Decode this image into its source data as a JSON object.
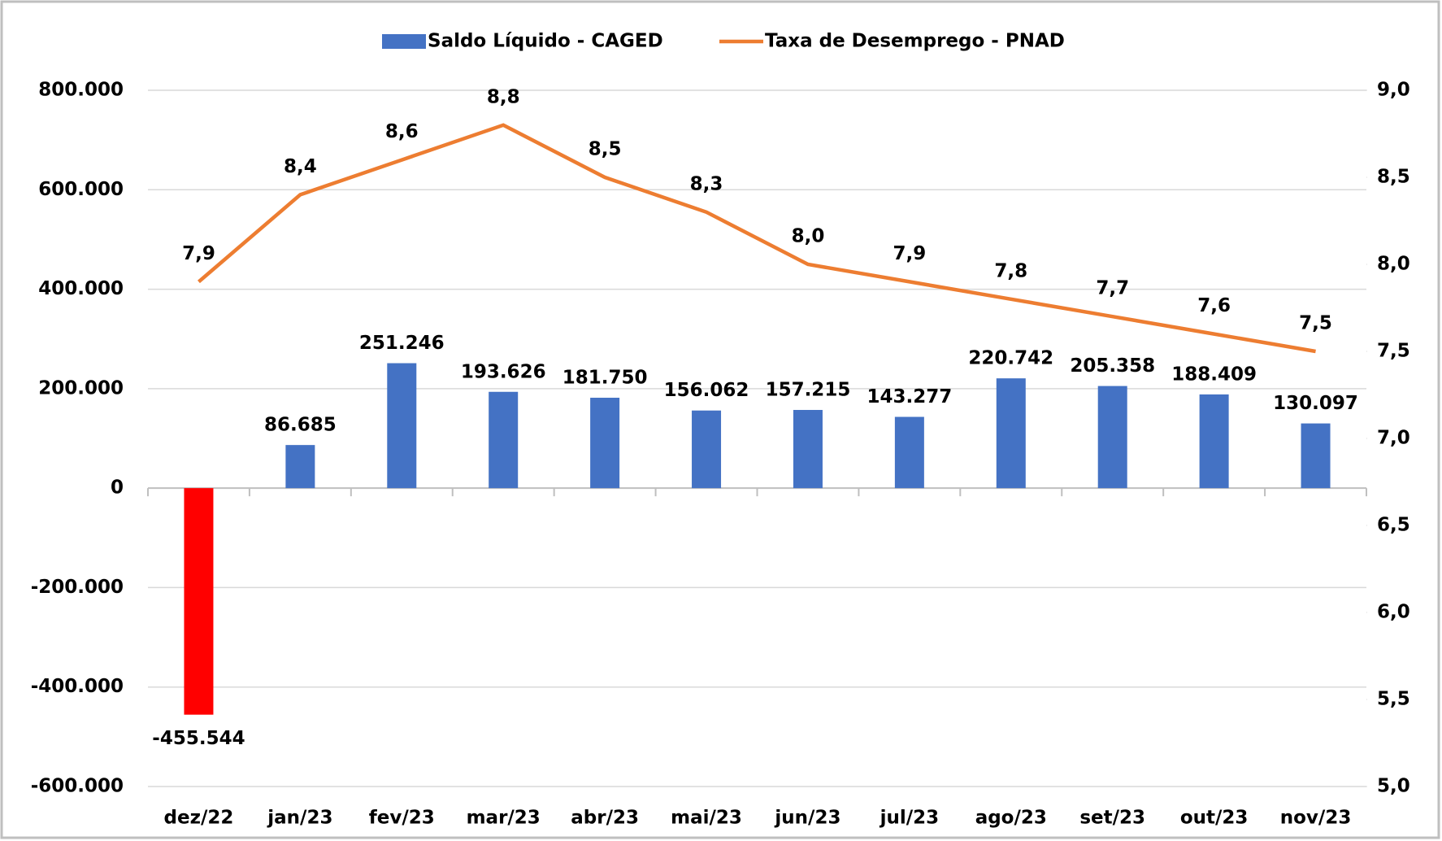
{
  "chart_data": {
    "type": "combo",
    "categories": [
      "dez/22",
      "jan/23",
      "fev/23",
      "mar/23",
      "abr/23",
      "mai/23",
      "jun/23",
      "jul/23",
      "ago/23",
      "set/23",
      "out/23",
      "nov/23"
    ],
    "series": [
      {
        "name": "Saldo Líquido - CAGED",
        "type": "bar",
        "color": "#4472c4",
        "negative_color": "#ff0000",
        "values": [
          -455544,
          86685,
          251246,
          193626,
          181750,
          156062,
          157215,
          143277,
          220742,
          205358,
          188409,
          130097
        ],
        "value_labels": [
          "-455.544",
          "86.685",
          "251.246",
          "193.626",
          "181.750",
          "156.062",
          "157.215",
          "143.277",
          "220.742",
          "205.358",
          "188.409",
          "130.097"
        ]
      },
      {
        "name": "Taxa de Desemprego - PNAD",
        "type": "line",
        "axis": "y2",
        "color": "#ed7d31",
        "values": [
          7.9,
          8.4,
          8.6,
          8.8,
          8.5,
          8.3,
          8.0,
          7.9,
          7.8,
          7.7,
          7.6,
          7.5
        ],
        "value_labels": [
          "7,9",
          "8,4",
          "8,6",
          "8,8",
          "8,5",
          "8,3",
          "8,0",
          "7,9",
          "7,8",
          "7,7",
          "7,6",
          "7,5"
        ]
      }
    ],
    "ylim": [
      -600000,
      800000
    ],
    "yticks": [
      {
        "value": -600000,
        "label": "-600.000"
      },
      {
        "value": -400000,
        "label": "-400.000"
      },
      {
        "value": -200000,
        "label": "-200.000"
      },
      0,
      {
        "value": 200000,
        "label": "200.000"
      },
      {
        "value": 400000,
        "label": "400.000"
      },
      {
        "value": 600000,
        "label": "600.000"
      },
      {
        "value": 800000,
        "label": "800.000"
      }
    ],
    "y2lim": [
      5,
      9
    ],
    "y2ticks": [
      {
        "value": 5,
        "label": "5,0"
      },
      {
        "value": 5.5,
        "label": "5,5"
      },
      {
        "value": 6,
        "label": "6,0"
      },
      {
        "value": 6.5,
        "label": "6,5"
      },
      {
        "value": 7,
        "label": "7,0"
      },
      {
        "value": 7.5,
        "label": "7,5"
      },
      {
        "value": 8,
        "label": "8,0"
      },
      {
        "value": 8.5,
        "label": "8,5"
      },
      {
        "value": 9,
        "label": "9,0"
      }
    ],
    "grid": true,
    "legend": "top"
  }
}
